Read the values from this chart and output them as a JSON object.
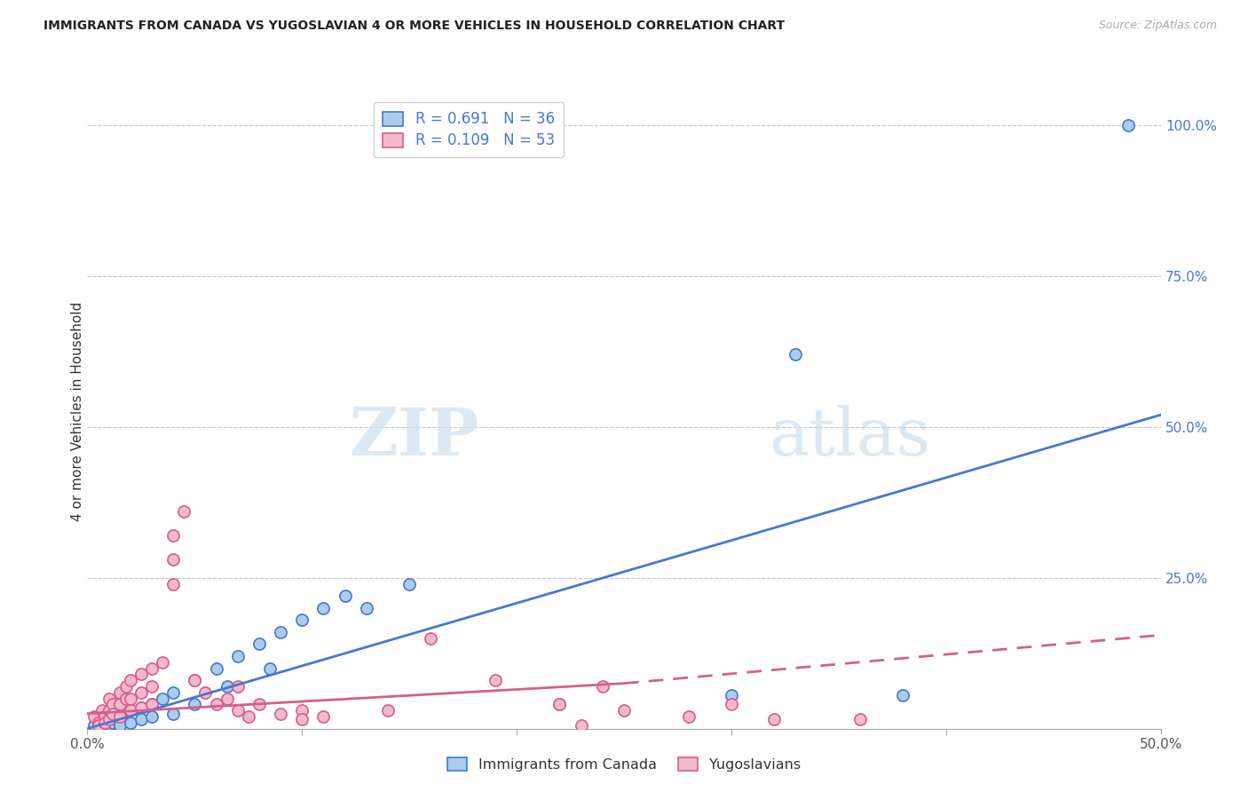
{
  "title": "IMMIGRANTS FROM CANADA VS YUGOSLAVIAN 4 OR MORE VEHICLES IN HOUSEHOLD CORRELATION CHART",
  "source": "Source: ZipAtlas.com",
  "ylabel": "4 or more Vehicles in Household",
  "xlim": [
    0.0,
    0.5
  ],
  "ylim": [
    0.0,
    1.05
  ],
  "y_ticks": [
    0.0,
    0.25,
    0.5,
    0.75,
    1.0
  ],
  "y_tick_labels": [
    "",
    "25.0%",
    "50.0%",
    "75.0%",
    "100.0%"
  ],
  "x_ticks": [
    0.0,
    0.1,
    0.2,
    0.3,
    0.4,
    0.5
  ],
  "x_tick_labels": [
    "0.0%",
    "",
    "",
    "",
    "",
    "50.0%"
  ],
  "R_blue": "0.691",
  "N_blue": "36",
  "R_pink": "0.109",
  "N_pink": "53",
  "label_blue": "Immigrants from Canada",
  "label_pink": "Yugoslavians",
  "watermark_zip": "ZIP",
  "watermark_atlas": "atlas",
  "background_color": "#ffffff",
  "grid_color": "#c8c8c8",
  "blue_color": "#4878cf",
  "pink_color": "#d45f8e",
  "blue_scatter_color": "#aaccee",
  "pink_scatter_color": "#f4b8cc",
  "blue_scatter": [
    [
      0.003,
      0.005
    ],
    [
      0.005,
      0.01
    ],
    [
      0.007,
      0.005
    ],
    [
      0.008,
      0.02
    ],
    [
      0.01,
      0.015
    ],
    [
      0.012,
      0.01
    ],
    [
      0.015,
      0.02
    ],
    [
      0.015,
      0.005
    ],
    [
      0.018,
      0.025
    ],
    [
      0.02,
      0.03
    ],
    [
      0.02,
      0.01
    ],
    [
      0.025,
      0.035
    ],
    [
      0.025,
      0.015
    ],
    [
      0.03,
      0.04
    ],
    [
      0.03,
      0.02
    ],
    [
      0.035,
      0.05
    ],
    [
      0.04,
      0.06
    ],
    [
      0.04,
      0.025
    ],
    [
      0.05,
      0.08
    ],
    [
      0.05,
      0.04
    ],
    [
      0.06,
      0.1
    ],
    [
      0.065,
      0.07
    ],
    [
      0.07,
      0.12
    ],
    [
      0.08,
      0.14
    ],
    [
      0.085,
      0.1
    ],
    [
      0.09,
      0.16
    ],
    [
      0.1,
      0.18
    ],
    [
      0.11,
      0.2
    ],
    [
      0.12,
      0.22
    ],
    [
      0.13,
      0.2
    ],
    [
      0.15,
      0.24
    ],
    [
      0.22,
      0.04
    ],
    [
      0.3,
      0.055
    ],
    [
      0.33,
      0.62
    ],
    [
      0.38,
      0.055
    ],
    [
      0.485,
      1.0
    ]
  ],
  "pink_scatter": [
    [
      0.003,
      0.02
    ],
    [
      0.005,
      0.01
    ],
    [
      0.005,
      0.005
    ],
    [
      0.007,
      0.03
    ],
    [
      0.008,
      0.02
    ],
    [
      0.008,
      0.01
    ],
    [
      0.01,
      0.05
    ],
    [
      0.01,
      0.03
    ],
    [
      0.01,
      0.015
    ],
    [
      0.012,
      0.04
    ],
    [
      0.012,
      0.025
    ],
    [
      0.015,
      0.06
    ],
    [
      0.015,
      0.04
    ],
    [
      0.015,
      0.02
    ],
    [
      0.018,
      0.07
    ],
    [
      0.018,
      0.05
    ],
    [
      0.02,
      0.08
    ],
    [
      0.02,
      0.05
    ],
    [
      0.02,
      0.03
    ],
    [
      0.025,
      0.09
    ],
    [
      0.025,
      0.06
    ],
    [
      0.025,
      0.035
    ],
    [
      0.03,
      0.1
    ],
    [
      0.03,
      0.07
    ],
    [
      0.03,
      0.04
    ],
    [
      0.035,
      0.11
    ],
    [
      0.04,
      0.32
    ],
    [
      0.04,
      0.28
    ],
    [
      0.04,
      0.24
    ],
    [
      0.045,
      0.36
    ],
    [
      0.05,
      0.08
    ],
    [
      0.055,
      0.06
    ],
    [
      0.06,
      0.04
    ],
    [
      0.065,
      0.05
    ],
    [
      0.07,
      0.07
    ],
    [
      0.07,
      0.03
    ],
    [
      0.075,
      0.02
    ],
    [
      0.08,
      0.04
    ],
    [
      0.09,
      0.025
    ],
    [
      0.1,
      0.03
    ],
    [
      0.1,
      0.015
    ],
    [
      0.11,
      0.02
    ],
    [
      0.14,
      0.03
    ],
    [
      0.16,
      0.15
    ],
    [
      0.19,
      0.08
    ],
    [
      0.22,
      0.04
    ],
    [
      0.23,
      0.005
    ],
    [
      0.24,
      0.07
    ],
    [
      0.25,
      0.03
    ],
    [
      0.28,
      0.02
    ],
    [
      0.3,
      0.04
    ],
    [
      0.32,
      0.015
    ],
    [
      0.36,
      0.015
    ]
  ],
  "blue_line": [
    [
      0.0,
      0.0
    ],
    [
      0.5,
      0.52
    ]
  ],
  "pink_line_solid": [
    [
      0.0,
      0.025
    ],
    [
      0.25,
      0.075
    ]
  ],
  "pink_line_dashed": [
    [
      0.25,
      0.075
    ],
    [
      0.5,
      0.155
    ]
  ]
}
